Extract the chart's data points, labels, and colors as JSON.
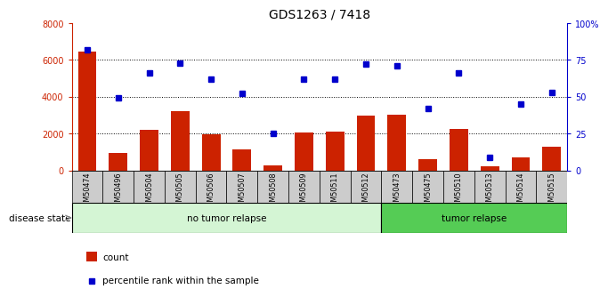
{
  "title": "GDS1263 / 7418",
  "categories": [
    "GSM50474",
    "GSM50496",
    "GSM50504",
    "GSM50505",
    "GSM50506",
    "GSM50507",
    "GSM50508",
    "GSM50509",
    "GSM50511",
    "GSM50512",
    "GSM50473",
    "GSM50475",
    "GSM50510",
    "GSM50513",
    "GSM50514",
    "GSM50515"
  ],
  "counts": [
    6450,
    950,
    2200,
    3200,
    1950,
    1150,
    250,
    2050,
    2100,
    2980,
    3020,
    600,
    2250,
    200,
    700,
    1300
  ],
  "percentiles": [
    82,
    49,
    66,
    73,
    62,
    52,
    25,
    62,
    62,
    72,
    71,
    42,
    66,
    9,
    45,
    53
  ],
  "no_tumor_count": 10,
  "left_ylim": [
    0,
    8000
  ],
  "right_ylim": [
    0,
    100
  ],
  "left_yticks": [
    0,
    2000,
    4000,
    6000,
    8000
  ],
  "right_yticks": [
    0,
    25,
    50,
    75,
    100
  ],
  "right_yticklabels": [
    "0",
    "25",
    "50",
    "75",
    "100%"
  ],
  "grid_levels": [
    2000,
    4000,
    6000
  ],
  "bar_color": "#cc2200",
  "dot_color": "#0000cc",
  "no_tumor_color": "#d4f5d4",
  "tumor_color": "#55cc55",
  "label_bg_color": "#cccccc",
  "disease_state_label": "disease state",
  "no_tumor_label": "no tumor relapse",
  "tumor_label": "tumor relapse",
  "legend_count": "count",
  "legend_percentile": "percentile rank within the sample",
  "left_axis_color": "#cc2200",
  "right_axis_color": "#0000cc",
  "tick_fontsize": 7,
  "bar_fontsize": 6,
  "title_fontsize": 10
}
